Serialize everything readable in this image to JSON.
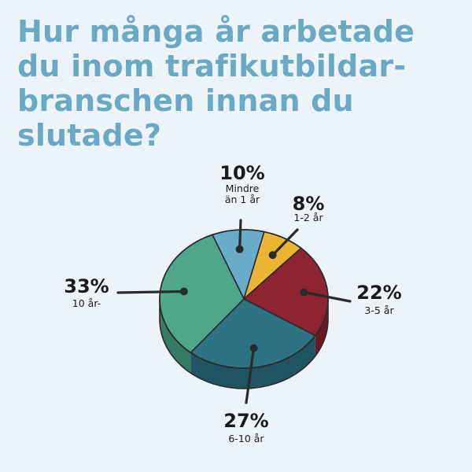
{
  "title_lines": [
    "Hur många år arbetade",
    "du inom trafikutbildar-",
    "branschen innan du",
    "slutade?"
  ],
  "chart_data": {
    "type": "pie",
    "title": "Hur många år arbetade du inom trafikutbildarbranschen innan du slutade?",
    "slices": [
      {
        "value": 10,
        "pct_label": "10%",
        "desc": [
          "Mindre",
          "än 1 år"
        ],
        "color": "#6aabc9",
        "side_color": "#4f8aa3"
      },
      {
        "value": 8,
        "pct_label": "8%",
        "desc": [
          "1-2 år"
        ],
        "color": "#ebb533",
        "side_color": "#c08f1e"
      },
      {
        "value": 22,
        "pct_label": "22%",
        "desc": [
          "3-5 år"
        ],
        "color": "#8e2432",
        "side_color": "#6b1824"
      },
      {
        "value": 27,
        "pct_label": "27%",
        "desc": [
          "6-10 år"
        ],
        "color": "#2e7383",
        "side_color": "#1f5562"
      },
      {
        "value": 33,
        "pct_label": "33%",
        "desc": [
          "10 år-"
        ],
        "color": "#4ea78b",
        "side_color": "#347a65"
      }
    ],
    "background": "#edf4f9",
    "leader_color": "#2b2b2b"
  }
}
